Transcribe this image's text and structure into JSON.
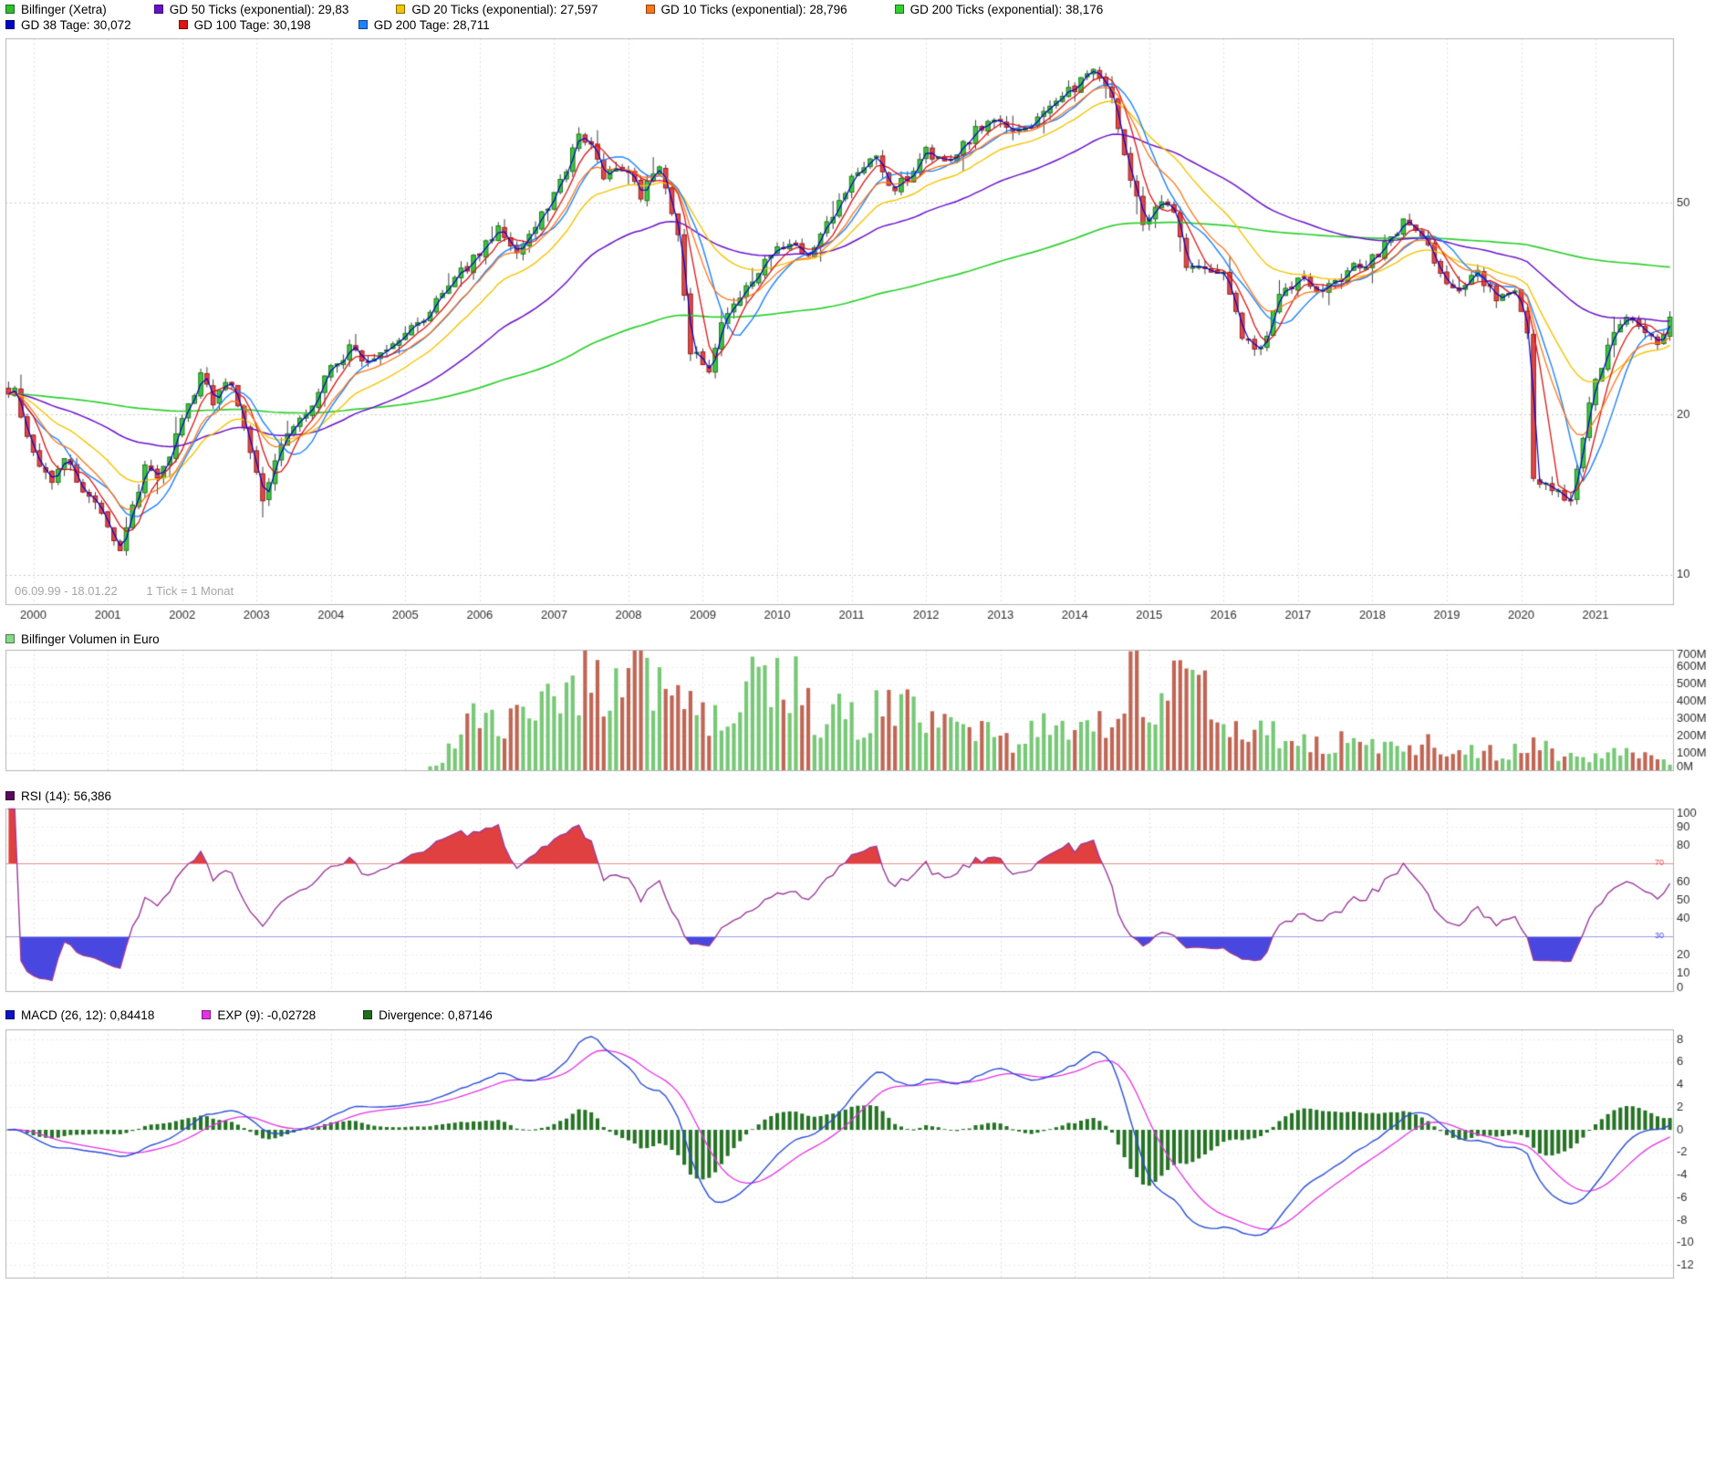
{
  "header": {
    "row1": [
      {
        "label": "Bilfinger (Xetra)",
        "color": "#2FBE2F"
      },
      {
        "label": "GD 50 Ticks (exponential): 29,83",
        "color": "#6A11CC"
      },
      {
        "label": "GD 20 Ticks (exponential): 27,597",
        "color": "#F5C400"
      },
      {
        "label": "GD 10 Ticks (exponential): 28,796",
        "color": "#FF7518"
      },
      {
        "label": "GD 200 Ticks (exponential): 38,176",
        "color": "#30D030"
      }
    ],
    "row2": [
      {
        "label": "GD 38 Tage: 30,072",
        "color": "#0000C8"
      },
      {
        "label": "GD 100 Tage: 30,198",
        "color": "#DC1414"
      },
      {
        "label": "GD 200 Tage: 28,711",
        "color": "#1E82FF"
      }
    ]
  },
  "main_chart": {
    "footnote_range": "06.09.99 - 18.01.22",
    "footnote_tick": "1 Tick = 1 Monat",
    "x_labels": [
      "2000",
      "2001",
      "2002",
      "2003",
      "2004",
      "2005",
      "2006",
      "2007",
      "2008",
      "2009",
      "2010",
      "2011",
      "2012",
      "2013",
      "2014",
      "2015",
      "2016",
      "2017",
      "2018",
      "2019",
      "2020",
      "2021"
    ]
  },
  "volume_legend": [
    {
      "label": "Bilfinger Volumen in Euro",
      "color": "#86D986"
    }
  ],
  "rsi_legend": [
    {
      "label": "RSI (14): 56,386",
      "color": "#5A0A5A"
    }
  ],
  "macd_legend": [
    {
      "label": "MACD (26, 12): 0,84418",
      "color": "#1010C8"
    },
    {
      "label": "EXP (9): -0,02728",
      "color": "#E632E6"
    },
    {
      "label": "Divergence: 0,87146",
      "color": "#1E6E1E"
    }
  ],
  "chart_data": [
    {
      "type": "candlestick",
      "title": "Bilfinger (Xetra)",
      "x_start": "1999-09",
      "x_end": "2022-01",
      "tick_interval": "1 Monat",
      "months": 269,
      "scale": "log",
      "ylim": [
        8.8,
        102
      ],
      "y_ticks": [
        {
          "v": 50,
          "label": "50"
        },
        {
          "v": 20,
          "label": "20"
        },
        {
          "v": 10,
          "label": "10"
        }
      ],
      "close_keypoints": [
        [
          0,
          21.5
        ],
        [
          1,
          22.5
        ],
        [
          3,
          18
        ],
        [
          5,
          16.2
        ],
        [
          7,
          15.2
        ],
        [
          9,
          16.8
        ],
        [
          12,
          14.2
        ],
        [
          15,
          13
        ],
        [
          17,
          11.4
        ],
        [
          18,
          11.2
        ],
        [
          20,
          13.2
        ],
        [
          22,
          16.2
        ],
        [
          24,
          15.2
        ],
        [
          26,
          16.8
        ],
        [
          28,
          19.6
        ],
        [
          31,
          23.6
        ],
        [
          33,
          21.2
        ],
        [
          36,
          23.2
        ],
        [
          38,
          19
        ],
        [
          41,
          13.6
        ],
        [
          44,
          17.6
        ],
        [
          48,
          20.2
        ],
        [
          52,
          24.2
        ],
        [
          55,
          26.6
        ],
        [
          58,
          25
        ],
        [
          62,
          26.8
        ],
        [
          64,
          28.6
        ],
        [
          68,
          31.2
        ],
        [
          72,
          35.8
        ],
        [
          76,
          40.2
        ],
        [
          79,
          44.8
        ],
        [
          82,
          40.6
        ],
        [
          86,
          47.2
        ],
        [
          89,
          55
        ],
        [
          92,
          66.5
        ],
        [
          94,
          63
        ],
        [
          96,
          55.5
        ],
        [
          99,
          58.8
        ],
        [
          102,
          51.5
        ],
        [
          105,
          58.2
        ],
        [
          108,
          43
        ],
        [
          110,
          26.5
        ],
        [
          113,
          24.2
        ],
        [
          115,
          29.2
        ],
        [
          118,
          33.2
        ],
        [
          122,
          38.6
        ],
        [
          126,
          42.2
        ],
        [
          129,
          40
        ],
        [
          133,
          47.2
        ],
        [
          136,
          55.2
        ],
        [
          140,
          60.5
        ],
        [
          143,
          52.5
        ],
        [
          146,
          58.2
        ],
        [
          148,
          62.2
        ],
        [
          152,
          60.2
        ],
        [
          156,
          68.2
        ],
        [
          160,
          71.2
        ],
        [
          163,
          68.2
        ],
        [
          167,
          74.2
        ],
        [
          171,
          80.5
        ],
        [
          175,
          89.5
        ],
        [
          178,
          80
        ],
        [
          180,
          62
        ],
        [
          183,
          46.5
        ],
        [
          186,
          51
        ],
        [
          188,
          48
        ],
        [
          190,
          38.5
        ],
        [
          193,
          37
        ],
        [
          196,
          37.5
        ],
        [
          199,
          28.5
        ],
        [
          202,
          26.5
        ],
        [
          205,
          33
        ],
        [
          208,
          36
        ],
        [
          212,
          34.5
        ],
        [
          216,
          37
        ],
        [
          221,
          40
        ],
        [
          225,
          46
        ],
        [
          228,
          43
        ],
        [
          231,
          36.5
        ],
        [
          234,
          34
        ],
        [
          237,
          37
        ],
        [
          240,
          33
        ],
        [
          243,
          34.5
        ],
        [
          245,
          28
        ],
        [
          246,
          15
        ],
        [
          249,
          14.5
        ],
        [
          252,
          13.5
        ],
        [
          255,
          21
        ],
        [
          258,
          27
        ],
        [
          261,
          31
        ],
        [
          264,
          29
        ],
        [
          266,
          27.5
        ],
        [
          268,
          30.5
        ]
      ],
      "overlays": [
        {
          "name": "GD 200 Ticks (exponential)",
          "method": "ema",
          "period": 200,
          "value": "38,176",
          "color": "#30D030",
          "width": 1.7
        },
        {
          "name": "GD 50 Ticks (exponential)",
          "method": "ema",
          "period": 50,
          "value": "29,83",
          "color": "#6A11CC",
          "width": 1.5
        },
        {
          "name": "GD 20 Ticks (exponential)",
          "method": "ema",
          "period": 20,
          "value": "27,597",
          "color": "#F5C400",
          "width": 1.4
        },
        {
          "name": "GD 200 Tage",
          "method": "sma",
          "period": 9,
          "value": "28,711",
          "color": "#1E82FF",
          "width": 1.4
        },
        {
          "name": "GD 100 Tage",
          "method": "sma",
          "period": 5,
          "value": "30,198",
          "color": "#DC1414",
          "width": 1.3
        },
        {
          "name": "GD 10 Ticks (exponential)",
          "method": "ema",
          "period": 10,
          "value": "28,796",
          "color": "#FF7518",
          "width": 1.3
        },
        {
          "name": "GD 38 Tage",
          "method": "sma",
          "period": 2,
          "value": "30,072",
          "color": "#0000C8",
          "width": 1.2
        }
      ],
      "colors": {
        "up": "#3FC43F",
        "up_stroke": "#1E7A1E",
        "down": "#E04848",
        "down_stroke": "#9A1F1F",
        "wick": "#3C3C3C"
      }
    },
    {
      "type": "bar",
      "title": "Bilfinger Volumen in Euro",
      "ylim": [
        0,
        700
      ],
      "unit": "M",
      "start_month": 68,
      "y_tick_values": [
        700,
        600,
        500,
        400,
        300,
        200,
        100,
        0
      ],
      "y_tick_labels": [
        "700M",
        "600M",
        "500M",
        "400M",
        "300M",
        "200M",
        "100M",
        "0M"
      ],
      "keypoints": [
        [
          68,
          25
        ],
        [
          70,
          60
        ],
        [
          74,
          280
        ],
        [
          78,
          310
        ],
        [
          80,
          240
        ],
        [
          84,
          300
        ],
        [
          88,
          380
        ],
        [
          91,
          520
        ],
        [
          93,
          640
        ],
        [
          96,
          430
        ],
        [
          100,
          540
        ],
        [
          104,
          620
        ],
        [
          107,
          470
        ],
        [
          110,
          390
        ],
        [
          114,
          270
        ],
        [
          118,
          310
        ],
        [
          121,
          560
        ],
        [
          123,
          650
        ],
        [
          127,
          460
        ],
        [
          130,
          290
        ],
        [
          134,
          320
        ],
        [
          138,
          270
        ],
        [
          142,
          430
        ],
        [
          146,
          300
        ],
        [
          150,
          250
        ],
        [
          154,
          200
        ],
        [
          158,
          240
        ],
        [
          162,
          175
        ],
        [
          166,
          260
        ],
        [
          170,
          200
        ],
        [
          174,
          235
        ],
        [
          178,
          310
        ],
        [
          181,
          630
        ],
        [
          183,
          550
        ],
        [
          186,
          400
        ],
        [
          189,
          490
        ],
        [
          191,
          610
        ],
        [
          194,
          300
        ],
        [
          197,
          250
        ],
        [
          200,
          210
        ],
        [
          203,
          320
        ],
        [
          206,
          170
        ],
        [
          210,
          155
        ],
        [
          214,
          165
        ],
        [
          218,
          135
        ],
        [
          222,
          145
        ],
        [
          226,
          125
        ],
        [
          230,
          155
        ],
        [
          234,
          115
        ],
        [
          238,
          105
        ],
        [
          242,
          95
        ],
        [
          246,
          155
        ],
        [
          250,
          85
        ],
        [
          254,
          65
        ],
        [
          258,
          115
        ],
        [
          262,
          105
        ],
        [
          265,
          80
        ],
        [
          268,
          55
        ]
      ],
      "colors": {
        "up": "#77C877",
        "down": "#C06655"
      }
    },
    {
      "type": "line",
      "title": "RSI (14)",
      "current": "56,386",
      "period": 14,
      "ylim": [
        0,
        100
      ],
      "y_tick_values": [
        100,
        90,
        80,
        60,
        50,
        40,
        20,
        10,
        0
      ],
      "levels": {
        "overbought": {
          "v": 70,
          "label": "70",
          "line_color": "#F08A8A",
          "text_color": "#E05050",
          "fill": "#E04040"
        },
        "oversold": {
          "v": 30,
          "label": "30",
          "line_color": "#9A9AE8",
          "text_color": "#5050E0",
          "fill": "#4848E0"
        }
      },
      "color": "#9A3C9A",
      "derived_from": "monthly closes of panel 0"
    },
    {
      "type": "macd",
      "title": "MACD (26, 12)",
      "params": {
        "fast": 12,
        "slow": 26,
        "signal": 9
      },
      "current": {
        "macd": "0,84418",
        "exp9": "-0,02728",
        "divergence": "0,87146"
      },
      "ylim": [
        -13.1,
        8.9
      ],
      "y_tick_values": [
        8,
        6,
        4,
        2,
        0,
        -2,
        -4,
        -6,
        -8,
        -10,
        -12
      ],
      "colors": {
        "macd_line": "#2B4FD7",
        "signal_line": "#E632E6",
        "histogram": "#267326"
      },
      "derived_from": "monthly closes of panel 0"
    }
  ]
}
